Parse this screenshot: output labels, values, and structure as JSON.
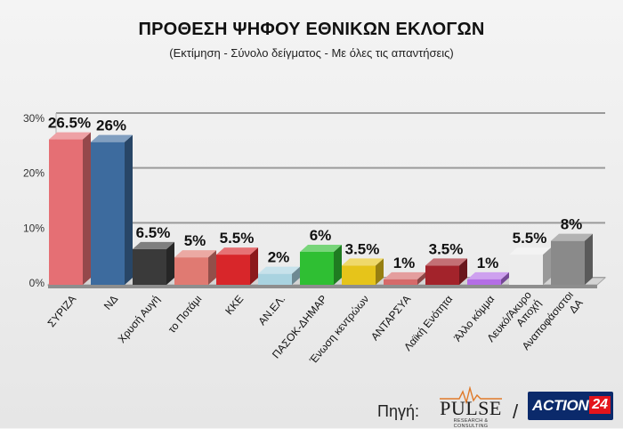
{
  "chart_data": {
    "type": "bar",
    "title": "ΠΡΟΘΕΣΗ ΨΗΦΟΥ ΕΘΝΙΚΩΝ ΕΚΛΟΓΩΝ",
    "subtitle": "(Εκτίμηση - Σύνολο δείγματος - Με όλες τις απαντήσεις)",
    "ylim": [
      0,
      30
    ],
    "yticks": [
      0,
      10,
      20,
      30
    ],
    "ytick_labels": [
      "0%",
      "10%",
      "20%",
      "30%"
    ],
    "grid": true,
    "categories": [
      "ΣΥΡΙΖΑ",
      "ΝΔ",
      "Χρυσή Αυγή",
      "το Ποτάμι",
      "ΚΚΕ",
      "ΑΝ.ΕΛ.",
      "ΠΑΣΟΚ-ΔΗΜΑΡ",
      "Ένωση κεντρώων",
      "ΑΝΤΑΡΣΥΑ",
      "Λαϊκή Ενότητα",
      "Άλλο κόμμα",
      "Λευκό/Άκυρο Αποχή",
      "Αναποφάσιστοι ΔΑ"
    ],
    "values": [
      26.5,
      26,
      6.5,
      5,
      5.5,
      2,
      6,
      3.5,
      1,
      3.5,
      1,
      5.5,
      8
    ],
    "value_labels": [
      "26.5%",
      "26%",
      "6.5%",
      "5%",
      "5.5%",
      "2%",
      "6%",
      "3.5%",
      "1%",
      "3.5%",
      "1%",
      "5.5%",
      "8%"
    ],
    "colors": [
      "#e56f74",
      "#3d6b9e",
      "#3a3a3a",
      "#e07a72",
      "#d8262a",
      "#a9d3e0",
      "#2fbf33",
      "#e6c41a",
      "#d66a6a",
      "#a3232b",
      "#b46ee6",
      "#ececec",
      "#8a8a8a"
    ]
  },
  "footer": {
    "source_label": "Πηγή:",
    "pulse_logo": "PULSE",
    "pulse_sub": "RESEARCH & CONSULTING",
    "separator": "/",
    "action_logo_text": "ACTION",
    "action_logo_number": "24"
  }
}
